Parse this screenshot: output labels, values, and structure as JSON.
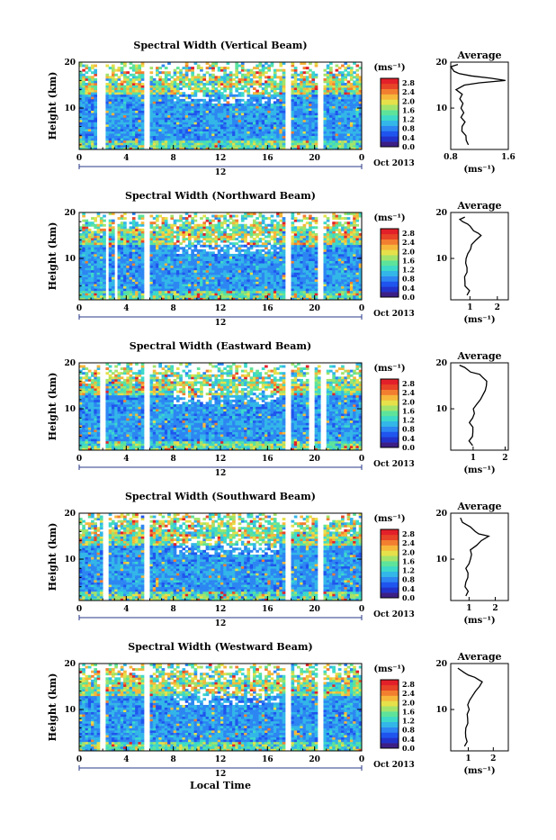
{
  "footer": {
    "xlabel": "Local Time"
  },
  "common": {
    "ylabel": "Height (km)",
    "colorbar_unit": "(ms⁻¹)",
    "colorbar_ticks": [
      "2.8",
      "2.4",
      "2.0",
      "1.6",
      "1.2",
      "0.8",
      "0.4",
      "0.0"
    ],
    "hour_ticks": [
      "0",
      "4",
      "8",
      "12",
      "16",
      "20",
      "0"
    ],
    "height_ticks": [
      "20",
      "10"
    ],
    "date_label": "Oct 2013",
    "day_label": "12",
    "avg_title": "Average",
    "avg_xlabel": "(ms⁻¹)"
  },
  "colors": {
    "scale": [
      "#3b1f86",
      "#2233cc",
      "#1f55ee",
      "#2d86f2",
      "#33b6e8",
      "#3dd9c9",
      "#5ee39a",
      "#a3e36b",
      "#e6e04a",
      "#f6b73b",
      "#f27e30",
      "#e84427",
      "#e3202a"
    ]
  },
  "chart_data": [
    {
      "type": "heatmap",
      "title": "Spectral Width (Vertical Beam)",
      "xlim_hours": [
        0,
        24
      ],
      "ylim_km": [
        1,
        20
      ],
      "color_range": [
        0,
        3.0
      ],
      "gaps_hours": [
        [
          1.6,
          2.3
        ],
        [
          5.4,
          5.9
        ],
        [
          17.6,
          17.9
        ],
        [
          20.3,
          20.8
        ]
      ],
      "average": {
        "xlim": [
          0.8,
          1.6
        ],
        "xticks": [
          "0.8",
          "1.6"
        ],
        "profile": [
          [
            1.05,
            2
          ],
          [
            1.0,
            3
          ],
          [
            1.02,
            4
          ],
          [
            0.96,
            5
          ],
          [
            0.95,
            6
          ],
          [
            0.98,
            7
          ],
          [
            0.95,
            8
          ],
          [
            0.97,
            9
          ],
          [
            0.93,
            10
          ],
          [
            0.96,
            11
          ],
          [
            0.92,
            12
          ],
          [
            0.94,
            13
          ],
          [
            0.88,
            14
          ],
          [
            1.0,
            15
          ],
          [
            1.2,
            15.5
          ],
          [
            1.55,
            16
          ],
          [
            1.35,
            16.5
          ],
          [
            1.1,
            17
          ],
          [
            0.9,
            17.5
          ],
          [
            0.85,
            18
          ],
          [
            0.82,
            19
          ],
          [
            0.9,
            19.5
          ]
        ]
      }
    },
    {
      "type": "heatmap",
      "title": "Spectral Width (Northward Beam)",
      "xlim_hours": [
        0,
        24
      ],
      "ylim_km": [
        1,
        20
      ],
      "color_range": [
        0,
        3.0
      ],
      "gaps_hours": [
        [
          2.3,
          2.6
        ],
        [
          3.1,
          3.3
        ],
        [
          5.4,
          5.9
        ],
        [
          17.6,
          17.9
        ],
        [
          20.3,
          20.8
        ]
      ],
      "average": {
        "xlim": [
          0.3,
          2.4
        ],
        "xticks": [
          "1",
          "2"
        ],
        "profile": [
          [
            0.9,
            2
          ],
          [
            0.95,
            3
          ],
          [
            0.8,
            4
          ],
          [
            0.85,
            5
          ],
          [
            0.8,
            6
          ],
          [
            0.9,
            7
          ],
          [
            0.85,
            8
          ],
          [
            0.8,
            9
          ],
          [
            0.9,
            10
          ],
          [
            0.95,
            11
          ],
          [
            1.0,
            12
          ],
          [
            1.1,
            13
          ],
          [
            1.2,
            14
          ],
          [
            1.4,
            15
          ],
          [
            1.3,
            15.5
          ],
          [
            1.1,
            16
          ],
          [
            1.0,
            17
          ],
          [
            0.9,
            17.5
          ],
          [
            0.7,
            18
          ],
          [
            0.6,
            18.5
          ],
          [
            0.8,
            19
          ]
        ]
      }
    },
    {
      "type": "heatmap",
      "title": "Spectral Width (Eastward Beam)",
      "xlim_hours": [
        0,
        24
      ],
      "ylim_km": [
        1,
        20
      ],
      "color_range": [
        0,
        3.0
      ],
      "gaps_hours": [
        [
          1.7,
          2.2
        ],
        [
          5.4,
          5.9
        ],
        [
          17.6,
          17.9
        ],
        [
          19.6,
          20.0
        ],
        [
          20.6,
          21.0
        ]
      ],
      "average": {
        "xlim": [
          0.3,
          2.1
        ],
        "xticks": [
          "1",
          "2"
        ],
        "profile": [
          [
            0.95,
            2
          ],
          [
            0.9,
            3
          ],
          [
            0.95,
            4
          ],
          [
            1.0,
            5
          ],
          [
            0.95,
            6
          ],
          [
            0.9,
            7
          ],
          [
            0.95,
            8
          ],
          [
            1.0,
            9
          ],
          [
            1.05,
            10
          ],
          [
            1.1,
            11
          ],
          [
            1.2,
            12
          ],
          [
            1.3,
            13
          ],
          [
            1.35,
            14
          ],
          [
            1.4,
            15
          ],
          [
            1.45,
            16
          ],
          [
            1.3,
            17
          ],
          [
            1.2,
            17.5
          ],
          [
            0.9,
            18
          ],
          [
            0.7,
            19
          ],
          [
            0.6,
            19.5
          ]
        ]
      }
    },
    {
      "type": "heatmap",
      "title": "Spectral Width (Southward Beam)",
      "xlim_hours": [
        0,
        24
      ],
      "ylim_km": [
        1,
        20
      ],
      "color_range": [
        0,
        3.0
      ],
      "gaps_hours": [
        [
          1.9,
          2.6
        ],
        [
          5.4,
          5.9
        ],
        [
          17.6,
          17.9
        ],
        [
          20.3,
          20.8
        ]
      ],
      "average": {
        "xlim": [
          0.3,
          2.5
        ],
        "xticks": [
          "1",
          "2"
        ],
        "profile": [
          [
            0.9,
            2
          ],
          [
            0.95,
            3
          ],
          [
            0.9,
            4
          ],
          [
            0.85,
            5
          ],
          [
            0.9,
            6
          ],
          [
            0.95,
            7
          ],
          [
            0.9,
            8
          ],
          [
            0.95,
            9
          ],
          [
            1.0,
            10
          ],
          [
            1.05,
            11
          ],
          [
            1.1,
            12
          ],
          [
            1.3,
            13
          ],
          [
            1.5,
            14
          ],
          [
            1.7,
            15
          ],
          [
            1.4,
            15.5
          ],
          [
            1.2,
            16
          ],
          [
            1.0,
            17
          ],
          [
            0.8,
            18
          ],
          [
            0.7,
            19
          ]
        ]
      }
    },
    {
      "type": "heatmap",
      "title": "Spectral Width (Westward Beam)",
      "xlim_hours": [
        0,
        24
      ],
      "ylim_km": [
        1,
        20
      ],
      "color_range": [
        0,
        3.0
      ],
      "gaps_hours": [
        [
          1.7,
          2.2
        ],
        [
          5.4,
          5.9
        ],
        [
          17.6,
          17.9
        ],
        [
          20.3,
          20.8
        ]
      ],
      "average": {
        "xlim": [
          0.3,
          2.6
        ],
        "xticks": [
          "1",
          "2"
        ],
        "profile": [
          [
            0.9,
            2
          ],
          [
            1.0,
            3
          ],
          [
            0.95,
            4
          ],
          [
            0.9,
            5
          ],
          [
            0.95,
            6
          ],
          [
            1.0,
            7
          ],
          [
            0.95,
            8
          ],
          [
            1.0,
            9
          ],
          [
            1.05,
            10
          ],
          [
            1.0,
            11
          ],
          [
            1.1,
            12
          ],
          [
            1.2,
            13
          ],
          [
            1.3,
            14
          ],
          [
            1.5,
            15
          ],
          [
            1.6,
            16
          ],
          [
            1.3,
            17
          ],
          [
            1.0,
            17.5
          ],
          [
            0.8,
            18
          ],
          [
            0.6,
            19
          ]
        ]
      }
    }
  ]
}
